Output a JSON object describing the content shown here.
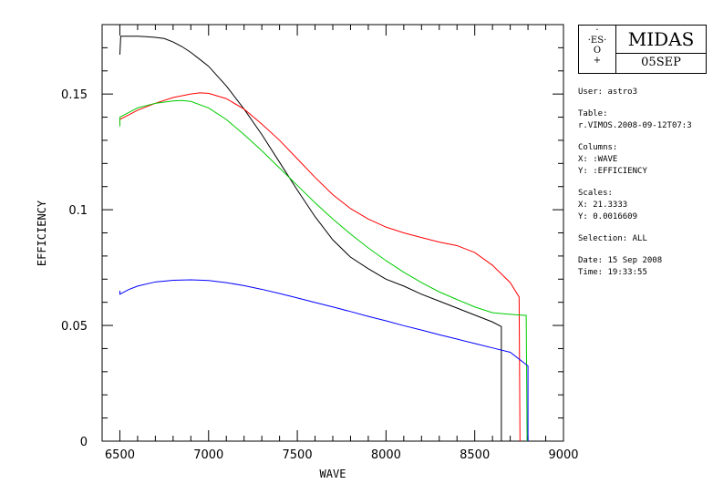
{
  "chart_data": {
    "type": "line",
    "xlabel": "WAVE",
    "ylabel": "EFFICIENCY",
    "xlim": [
      6400,
      9000
    ],
    "ylim": [
      0,
      0.18
    ],
    "xticks": [
      6500,
      7000,
      7500,
      8000,
      8500,
      9000
    ],
    "yticks": [
      0,
      0.05,
      0.1,
      0.15
    ],
    "ytick_labels": [
      "0",
      "0.05",
      "0.1",
      "0.15"
    ],
    "grid": false,
    "series": [
      {
        "color": "#000000",
        "x": [
          6500,
          6505,
          6550,
          6600,
          6650,
          6700,
          6750,
          6800,
          6850,
          6900,
          6950,
          7000,
          7100,
          7200,
          7300,
          7400,
          7500,
          7600,
          7700,
          7800,
          7900,
          8000,
          8100,
          8200,
          8300,
          8400,
          8500,
          8600,
          8650,
          8650
        ],
        "y": [
          0.167,
          0.175,
          0.175,
          0.175,
          0.1748,
          0.1745,
          0.174,
          0.1725,
          0.1705,
          0.168,
          0.165,
          0.162,
          0.1535,
          0.1435,
          0.1325,
          0.1205,
          0.1085,
          0.097,
          0.087,
          0.0795,
          0.0745,
          0.07,
          0.067,
          0.0635,
          0.0605,
          0.0575,
          0.0545,
          0.0515,
          0.0495,
          0
        ]
      },
      {
        "color": "#ff0000",
        "x": [
          6500,
          6500,
          6550,
          6600,
          6700,
          6800,
          6900,
          6950,
          7000,
          7100,
          7200,
          7300,
          7400,
          7500,
          7600,
          7700,
          7800,
          7900,
          8000,
          8100,
          8200,
          8300,
          8400,
          8500,
          8600,
          8700,
          8750,
          8755
        ],
        "y": [
          0.137,
          0.139,
          0.141,
          0.143,
          0.146,
          0.1485,
          0.15,
          0.1505,
          0.1503,
          0.148,
          0.1435,
          0.137,
          0.13,
          0.122,
          0.114,
          0.1065,
          0.1005,
          0.096,
          0.0925,
          0.09,
          0.088,
          0.086,
          0.0845,
          0.0815,
          0.076,
          0.0685,
          0.0623,
          0
        ]
      },
      {
        "color": "#00cc00",
        "x": [
          6500,
          6500,
          6550,
          6600,
          6700,
          6800,
          6850,
          6900,
          7000,
          7100,
          7200,
          7300,
          7400,
          7500,
          7600,
          7700,
          7800,
          7900,
          8000,
          8100,
          8200,
          8300,
          8400,
          8500,
          8600,
          8700,
          8790,
          8795
        ],
        "y": [
          0.136,
          0.14,
          0.142,
          0.144,
          0.146,
          0.147,
          0.1472,
          0.1468,
          0.144,
          0.139,
          0.1325,
          0.1255,
          0.118,
          0.1105,
          0.103,
          0.096,
          0.0895,
          0.0835,
          0.078,
          0.073,
          0.0685,
          0.0645,
          0.0612,
          0.058,
          0.0555,
          0.0548,
          0.0543,
          0
        ]
      },
      {
        "color": "#0000ff",
        "x": [
          6500,
          6500,
          6550,
          6600,
          6700,
          6800,
          6900,
          7000,
          7100,
          7200,
          7300,
          7400,
          7500,
          7600,
          7700,
          7800,
          7900,
          8000,
          8100,
          8200,
          8300,
          8400,
          8500,
          8600,
          8700,
          8800,
          8800
        ],
        "y": [
          0.065,
          0.0635,
          0.0655,
          0.067,
          0.0688,
          0.0695,
          0.0697,
          0.0694,
          0.0685,
          0.0672,
          0.0656,
          0.0638,
          0.0619,
          0.0599,
          0.058,
          0.056,
          0.0539,
          0.052,
          0.0499,
          0.048,
          0.046,
          0.0441,
          0.0422,
          0.0403,
          0.0384,
          0.0325,
          0
        ]
      }
    ]
  },
  "logo": {
    "mark_top": "·",
    "mark_line1": "·ES·",
    "mark_line2": "O",
    "mark_line3": "+",
    "title": "MIDAS",
    "date": "05SEP"
  },
  "info": {
    "user": "User: astro3",
    "table_label": "Table:",
    "table_value": "r.VIMOS.2008-09-12T07:3",
    "columns_label": "Columns:",
    "columns_x": "X: :WAVE",
    "columns_y": "Y: :EFFICIENCY",
    "scales_label": "Scales:",
    "scales_x": "X: 21.3333",
    "scales_y": "Y: 0.0016609",
    "selection": "Selection:  ALL",
    "date": "Date: 15 Sep 2008",
    "time": "Time: 19:33:55"
  }
}
